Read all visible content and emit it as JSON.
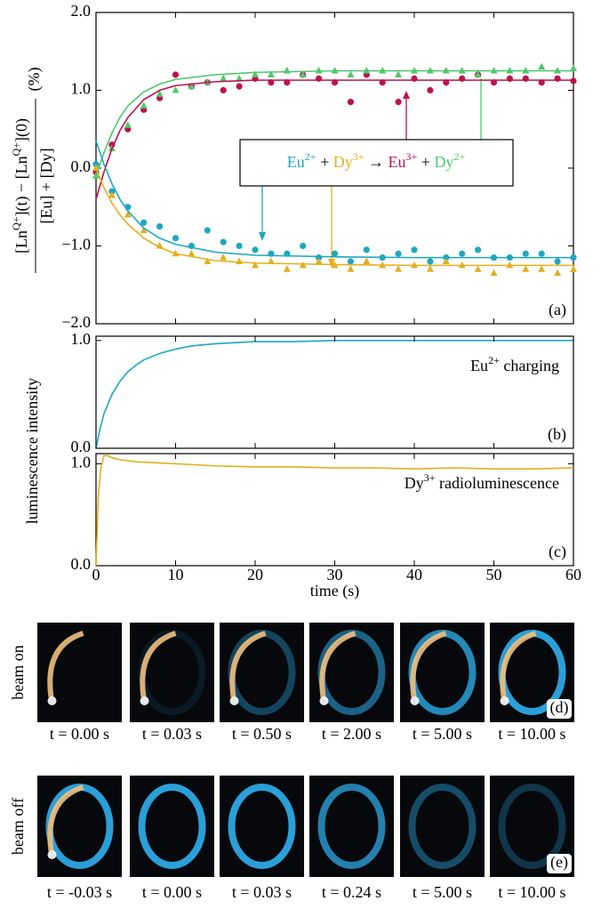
{
  "chart_data": [
    {
      "type": "scatter",
      "panel": "(a)",
      "xlim": [
        0,
        60
      ],
      "ylim": [
        -2.0,
        2.0
      ],
      "yticks": [
        {
          "value": 2.0,
          "label": "2.0"
        },
        {
          "value": 1.0,
          "label": "1.0"
        },
        {
          "value": 0.0,
          "label": "0.0"
        },
        {
          "value": -1.0,
          "label": "−1.0"
        },
        {
          "value": -2.0,
          "label": "−2.0"
        }
      ],
      "ylabel": {
        "numerator": [
          {
            "text": "[Ln"
          },
          {
            "sup": "Q+"
          },
          {
            "text": "](t) − [Ln"
          },
          {
            "sup": "Q+"
          },
          {
            "text": "](0)"
          }
        ],
        "denominator": "[Eu] + [Dy]",
        "unit": "(%)"
      },
      "equation": [
        {
          "text": "Eu",
          "color": "#1aa9c0"
        },
        {
          "sup": "2+",
          "color": "#1aa9c0"
        },
        {
          "text": " + "
        },
        {
          "text": "Dy",
          "color": "#e3b01c"
        },
        {
          "sup": "3+",
          "color": "#e3b01c"
        },
        {
          "text": " → "
        },
        {
          "text": "Eu",
          "color": "#c0114a"
        },
        {
          "sup": "3+",
          "color": "#c0114a"
        },
        {
          "text": " + "
        },
        {
          "text": "Dy",
          "color": "#4cc96a"
        },
        {
          "sup": "2+",
          "color": "#4cc96a"
        }
      ],
      "series": [
        {
          "kind": "scatter",
          "marker": "circle",
          "color": "#c0114a",
          "x": [
            0,
            2,
            4,
            6,
            8,
            10,
            12,
            14,
            16,
            18,
            20,
            22,
            24,
            26,
            28,
            30,
            32,
            34,
            36,
            38,
            40,
            42,
            44,
            46,
            48,
            50,
            52,
            54,
            56,
            58,
            60
          ],
          "values": [
            -0.05,
            0.3,
            0.5,
            0.75,
            0.9,
            1.2,
            1.05,
            1.1,
            1.0,
            1.05,
            1.15,
            1.1,
            1.1,
            1.2,
            1.15,
            1.1,
            0.85,
            1.2,
            1.1,
            0.85,
            1.15,
            1.0,
            1.1,
            1.15,
            1.2,
            1.1,
            1.15,
            1.15,
            1.1,
            1.15,
            1.12
          ]
        },
        {
          "kind": "scatter",
          "marker": "triangle",
          "color": "#4cc96a",
          "x": [
            0,
            2,
            4,
            6,
            8,
            10,
            12,
            14,
            16,
            18,
            20,
            22,
            24,
            26,
            28,
            30,
            32,
            34,
            36,
            38,
            40,
            42,
            44,
            46,
            48,
            50,
            52,
            54,
            56,
            58,
            60
          ],
          "values": [
            -0.1,
            0.25,
            0.55,
            0.8,
            0.95,
            1.0,
            1.05,
            1.1,
            1.15,
            1.15,
            1.2,
            1.2,
            1.25,
            1.2,
            1.25,
            1.25,
            1.2,
            1.25,
            1.25,
            1.2,
            1.25,
            1.25,
            1.25,
            1.25,
            1.2,
            1.25,
            1.25,
            1.25,
            1.3,
            1.25,
            1.28
          ]
        },
        {
          "kind": "scatter",
          "marker": "circle",
          "color": "#1aa9c0",
          "x": [
            0,
            2,
            4,
            6,
            8,
            10,
            12,
            14,
            16,
            18,
            20,
            22,
            24,
            26,
            28,
            30,
            32,
            34,
            36,
            38,
            40,
            42,
            44,
            46,
            48,
            50,
            52,
            54,
            56,
            58,
            60
          ],
          "values": [
            0.05,
            -0.3,
            -0.5,
            -0.7,
            -0.75,
            -0.9,
            -1.0,
            -0.8,
            -0.95,
            -1.0,
            -1.05,
            -1.1,
            -1.1,
            -1.0,
            -1.15,
            -1.1,
            -1.2,
            -1.05,
            -1.15,
            -1.1,
            -1.05,
            -1.2,
            -1.15,
            -1.1,
            -1.05,
            -1.15,
            -1.15,
            -1.1,
            -1.1,
            -1.2,
            -1.15
          ]
        },
        {
          "kind": "scatter",
          "marker": "triangle",
          "color": "#e3b01c",
          "x": [
            0,
            2,
            4,
            6,
            8,
            10,
            12,
            14,
            16,
            18,
            20,
            22,
            24,
            26,
            28,
            30,
            32,
            34,
            36,
            38,
            40,
            42,
            44,
            46,
            48,
            50,
            52,
            54,
            56,
            58,
            60
          ],
          "values": [
            0,
            -0.35,
            -0.6,
            -0.8,
            -1.0,
            -1.1,
            -1.1,
            -1.2,
            -1.15,
            -1.2,
            -1.25,
            -1.2,
            -1.3,
            -1.25,
            -1.2,
            -1.25,
            -1.3,
            -1.2,
            -1.25,
            -1.3,
            -1.25,
            -1.3,
            -1.2,
            -1.25,
            -1.3,
            -1.35,
            -1.25,
            -1.3,
            -1.3,
            -1.35,
            -1.3
          ]
        },
        {
          "kind": "line",
          "color": "#c0114a",
          "x": [
            0,
            1,
            2,
            3,
            4,
            6,
            8,
            10,
            15,
            20,
            30,
            40,
            50,
            60
          ],
          "values": [
            -0.4,
            -0.05,
            0.25,
            0.48,
            0.65,
            0.88,
            1.0,
            1.06,
            1.11,
            1.13,
            1.13,
            1.13,
            1.13,
            1.13
          ]
        },
        {
          "kind": "line",
          "color": "#4cc96a",
          "x": [
            0,
            1,
            2,
            3,
            4,
            6,
            8,
            10,
            15,
            20,
            30,
            40,
            50,
            60
          ],
          "values": [
            -0.1,
            0.2,
            0.45,
            0.65,
            0.8,
            0.98,
            1.08,
            1.14,
            1.2,
            1.23,
            1.25,
            1.25,
            1.25,
            1.25
          ]
        },
        {
          "kind": "line",
          "color": "#1aa9c0",
          "x": [
            0,
            1,
            2,
            3,
            4,
            6,
            8,
            10,
            15,
            20,
            30,
            40,
            50,
            60
          ],
          "values": [
            0.35,
            0.05,
            -0.2,
            -0.4,
            -0.55,
            -0.77,
            -0.9,
            -0.98,
            -1.08,
            -1.12,
            -1.14,
            -1.15,
            -1.15,
            -1.15
          ]
        },
        {
          "kind": "line",
          "color": "#e3b01c",
          "x": [
            0,
            1,
            2,
            3,
            4,
            6,
            8,
            10,
            15,
            20,
            30,
            40,
            50,
            60
          ],
          "values": [
            0,
            -0.25,
            -0.45,
            -0.6,
            -0.72,
            -0.9,
            -1.02,
            -1.1,
            -1.19,
            -1.22,
            -1.24,
            -1.25,
            -1.25,
            -1.25
          ]
        }
      ]
    },
    {
      "type": "line",
      "panel": "(b)",
      "xlim": [
        0,
        60
      ],
      "ylim": [
        0,
        1.04
      ],
      "yticks": [
        {
          "value": 0.0,
          "label": "0.0"
        },
        {
          "value": 1.0,
          "label": "1.0"
        }
      ],
      "ylabel": "luminescence intensity",
      "annotation": {
        "color": "#1aa9c0",
        "parts": [
          {
            "text": "Eu"
          },
          {
            "sup": "2+"
          },
          {
            "text": " charging"
          }
        ]
      },
      "series": [
        {
          "kind": "line",
          "color": "#1aa9c0",
          "x": [
            0,
            0.5,
            1,
            2,
            3,
            4,
            5,
            6,
            8,
            10,
            12,
            15,
            20,
            25,
            30,
            40,
            50,
            60
          ],
          "values": [
            0,
            0.18,
            0.32,
            0.5,
            0.62,
            0.71,
            0.77,
            0.82,
            0.88,
            0.92,
            0.95,
            0.97,
            0.99,
            0.99,
            1.0,
            1.0,
            1.0,
            1.0
          ]
        }
      ]
    },
    {
      "type": "line",
      "panel": "(c)",
      "xlim": [
        0,
        60
      ],
      "ylim": [
        0,
        1.1
      ],
      "yticks": [
        {
          "value": 0.0,
          "label": "0.0"
        },
        {
          "value": 1.0,
          "label": "1.0"
        }
      ],
      "xticks": [
        0,
        10,
        20,
        30,
        40,
        50,
        60
      ],
      "xlabel": "time (s)",
      "annotation": {
        "color": "#e3b01c",
        "parts": [
          {
            "text": "Dy"
          },
          {
            "sup": "3+"
          },
          {
            "text": " radioluminescence"
          }
        ]
      },
      "series": [
        {
          "kind": "line",
          "color": "#e3b01c",
          "x": [
            0,
            0.3,
            0.6,
            1,
            1.5,
            2,
            3,
            5,
            10,
            15,
            20,
            25,
            30,
            35,
            40,
            45,
            50,
            55,
            60
          ],
          "values": [
            0,
            0.7,
            0.95,
            1.08,
            1.08,
            1.06,
            1.04,
            1.02,
            1.0,
            0.98,
            0.97,
            0.97,
            0.96,
            0.96,
            0.95,
            0.96,
            0.95,
            0.95,
            0.96
          ]
        }
      ]
    }
  ],
  "images": {
    "rows": [
      {
        "label": "beam on",
        "panel": "(d)",
        "captions": [
          "t = 0.00 s",
          "t = 0.03 s",
          "t = 0.50 s",
          "t = 2.00 s",
          "t = 5.00 s",
          "t = 10.00 s"
        ]
      },
      {
        "label": "beam off",
        "panel": "(e)",
        "captions": [
          "t = -0.03 s",
          "t = 0.00 s",
          "t = 0.03 s",
          "t = 0.24 s",
          "t = 5.00 s",
          "t = 10.00 s"
        ]
      }
    ]
  }
}
